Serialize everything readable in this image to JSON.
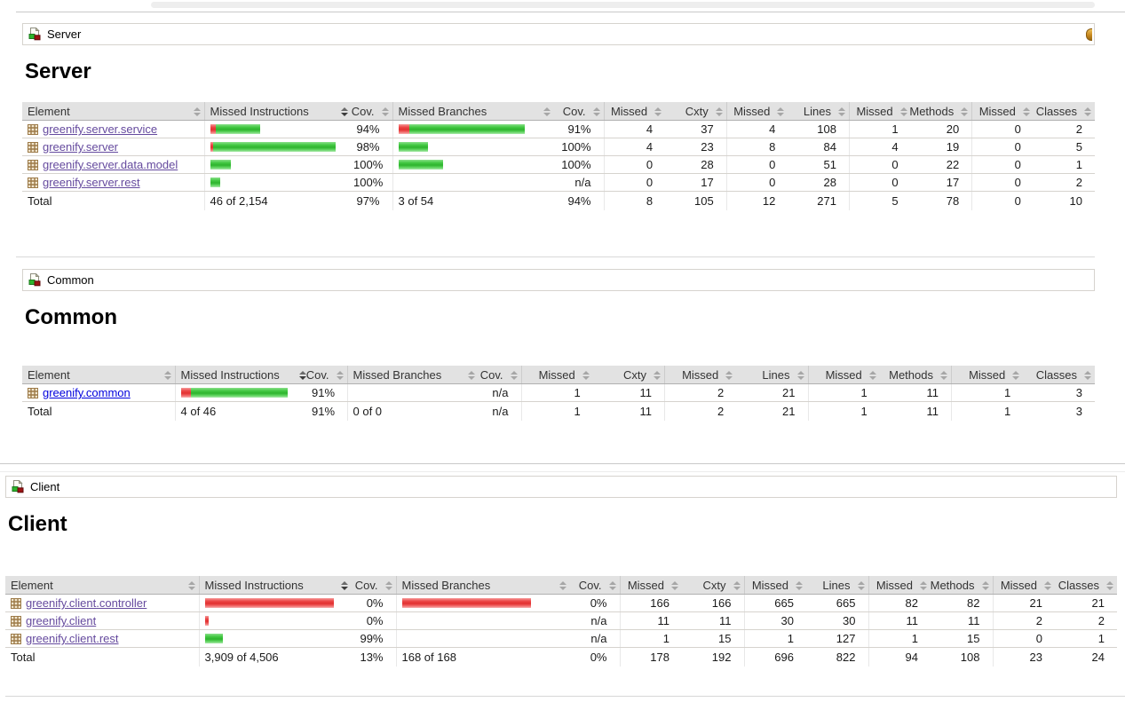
{
  "page": {
    "columns": {
      "element": "Element",
      "missed_instructions": "Missed Instructions",
      "cov": "Cov.",
      "missed_branches": "Missed Branches",
      "missed": "Missed",
      "cxty": "Cxty",
      "lines": "Lines",
      "methods": "Methods",
      "classes": "Classes"
    },
    "sort": {
      "column": "missed_instructions",
      "direction": "desc"
    },
    "na": "n/a",
    "colors": {
      "covered_green": "#35bd35",
      "missed_red": "#e23b3b",
      "header_bg": "#e2e2e2",
      "link": "#0000dd",
      "link_visited": "#654a9e"
    }
  },
  "sections": [
    {
      "breadcrumb": "Server",
      "heading": "Server",
      "table": {
        "rows": [
          {
            "label": "greenify.server.service",
            "visited": true,
            "bars": {
              "instructions": {
                "red": 6,
                "green": 50
              },
              "branches": {
                "red": 12,
                "green": 130
              }
            },
            "cov_instructions": "94%",
            "cov_branches": "91%",
            "counts": [
              "4",
              "37",
              "4",
              "108",
              "1",
              "20",
              "0",
              "2"
            ]
          },
          {
            "label": "greenify.server",
            "visited": true,
            "bars": {
              "instructions": {
                "red": 3,
                "green": 138
              },
              "branches": {
                "red": 0,
                "green": 33
              }
            },
            "cov_instructions": "98%",
            "cov_branches": "100%",
            "counts": [
              "4",
              "23",
              "8",
              "84",
              "4",
              "19",
              "0",
              "5"
            ]
          },
          {
            "label": "greenify.server.data.model",
            "visited": true,
            "bars": {
              "instructions": {
                "red": 0,
                "green": 23
              },
              "branches": {
                "red": 0,
                "green": 50
              }
            },
            "cov_instructions": "100%",
            "cov_branches": "100%",
            "counts": [
              "0",
              "28",
              "0",
              "51",
              "0",
              "22",
              "0",
              "1"
            ]
          },
          {
            "label": "greenify.server.rest",
            "visited": true,
            "bars": {
              "instructions": {
                "red": 0,
                "green": 11
              },
              "branches": {
                "red": 0,
                "green": 0
              }
            },
            "cov_instructions": "100%",
            "cov_branches": "n/a",
            "counts": [
              "0",
              "17",
              "0",
              "28",
              "0",
              "17",
              "0",
              "2"
            ]
          }
        ],
        "total": {
          "label": "Total",
          "missed_instructions": "46 of 2,154",
          "cov_instructions": "97%",
          "missed_branches": "3 of 54",
          "cov_branches": "94%",
          "counts": [
            "8",
            "105",
            "12",
            "271",
            "5",
            "78",
            "0",
            "10"
          ]
        }
      }
    },
    {
      "breadcrumb": "Common",
      "heading": "Common",
      "table": {
        "rows": [
          {
            "label": "greenify.common",
            "visited": false,
            "bars": {
              "instructions": {
                "red": 11,
                "green": 109
              },
              "branches": {
                "red": 0,
                "green": 0
              }
            },
            "cov_instructions": "91%",
            "cov_branches": "n/a",
            "counts": [
              "1",
              "11",
              "2",
              "21",
              "1",
              "11",
              "1",
              "3"
            ]
          }
        ],
        "total": {
          "label": "Total",
          "missed_instructions": "4 of 46",
          "cov_instructions": "91%",
          "missed_branches": "0 of 0",
          "cov_branches": "n/a",
          "counts": [
            "1",
            "11",
            "2",
            "21",
            "1",
            "11",
            "1",
            "3"
          ]
        }
      }
    },
    {
      "breadcrumb": "Client",
      "heading": "Client",
      "table": {
        "rows": [
          {
            "label": "greenify.client.controller",
            "visited": true,
            "bars": {
              "instructions": {
                "red": 145,
                "green": 0
              },
              "branches": {
                "red": 145,
                "green": 0
              }
            },
            "cov_instructions": "0%",
            "cov_branches": "0%",
            "counts": [
              "166",
              "166",
              "665",
              "665",
              "82",
              "82",
              "21",
              "21"
            ]
          },
          {
            "label": "greenify.client",
            "visited": true,
            "bars": {
              "instructions": {
                "red": 4,
                "green": 0
              },
              "branches": {
                "red": 0,
                "green": 0
              }
            },
            "cov_instructions": "0%",
            "cov_branches": "n/a",
            "counts": [
              "11",
              "11",
              "30",
              "30",
              "11",
              "11",
              "2",
              "2"
            ]
          },
          {
            "label": "greenify.client.rest",
            "visited": true,
            "bars": {
              "instructions": {
                "red": 0,
                "green": 20
              },
              "branches": {
                "red": 0,
                "green": 0
              }
            },
            "cov_instructions": "99%",
            "cov_branches": "n/a",
            "counts": [
              "1",
              "15",
              "1",
              "127",
              "1",
              "15",
              "0",
              "1"
            ]
          }
        ],
        "total": {
          "label": "Total",
          "missed_instructions": "3,909 of 4,506",
          "cov_instructions": "13%",
          "missed_branches": "168 of 168",
          "cov_branches": "0%",
          "counts": [
            "178",
            "192",
            "696",
            "822",
            "94",
            "108",
            "23",
            "24"
          ]
        }
      }
    }
  ]
}
